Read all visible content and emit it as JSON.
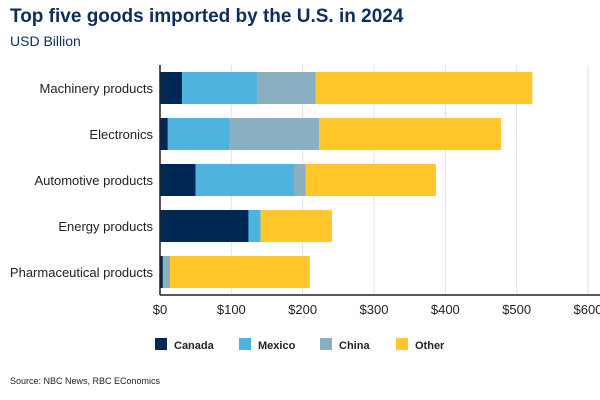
{
  "chart_data": {
    "type": "bar",
    "orientation": "horizontal",
    "stacked": true,
    "title": "Top five goods imported by the U.S. in 2024",
    "subtitle": "USD Billion",
    "source": "Source: NBC News, RBC EConomics",
    "categories": [
      "Machinery products",
      "Electronics",
      "Automotive products",
      "Energy products",
      "Pharmaceutical products"
    ],
    "series": [
      {
        "name": "Canada",
        "color": "#002855",
        "values": [
          31,
          11,
          50,
          124,
          4
        ]
      },
      {
        "name": "Mexico",
        "color": "#4fb3e0",
        "values": [
          105,
          87,
          138,
          17,
          0
        ]
      },
      {
        "name": "China",
        "color": "#8aafc0",
        "values": [
          82,
          125,
          16,
          0,
          10
        ]
      },
      {
        "name": "Other",
        "color": "#ffc72c",
        "values": [
          304,
          255,
          183,
          100,
          196
        ]
      }
    ],
    "xlim": [
      0,
      600
    ],
    "xticks": [
      0,
      100,
      200,
      300,
      400,
      500,
      600
    ],
    "xtick_labels": [
      "$0",
      "$100",
      "$200",
      "$300",
      "$400",
      "$500",
      "$600"
    ],
    "grid": true,
    "legend_position": "bottom"
  }
}
